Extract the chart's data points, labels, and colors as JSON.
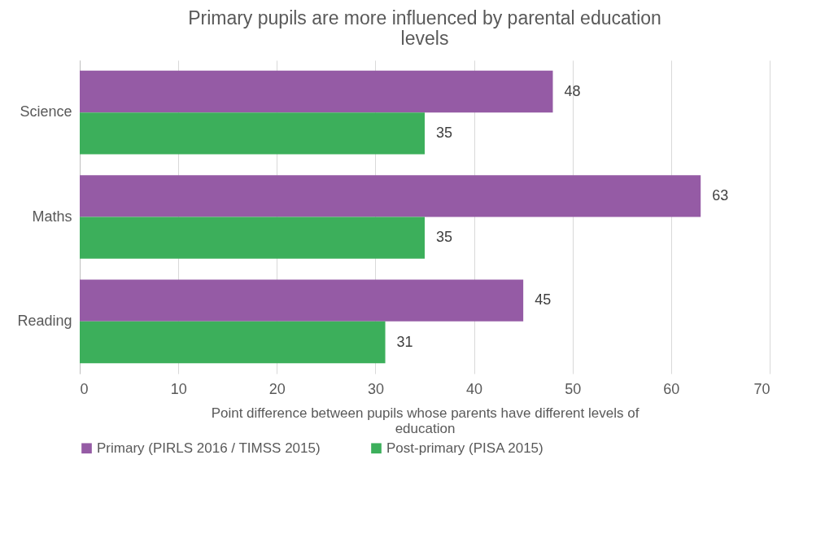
{
  "chart_data": {
    "type": "bar",
    "orientation": "horizontal",
    "title": "Primary pupils are more influenced by parental education levels",
    "xlabel": "Point difference between pupils whose parents have different levels of education",
    "categories": [
      "Science",
      "Maths",
      "Reading"
    ],
    "series": [
      {
        "name": "Primary (PIRLS 2016 / TIMSS 2015)",
        "color": "#955ba5",
        "values": [
          48,
          63,
          45
        ]
      },
      {
        "name": "Post-primary (PISA 2015)",
        "color": "#3caf5b",
        "values": [
          35,
          35,
          31
        ]
      }
    ],
    "xlim": [
      0,
      70
    ],
    "xticks": [
      0,
      10,
      20,
      30,
      40,
      50,
      60,
      70
    ],
    "grid": "x",
    "legend": "bottom",
    "data_labels": true
  }
}
